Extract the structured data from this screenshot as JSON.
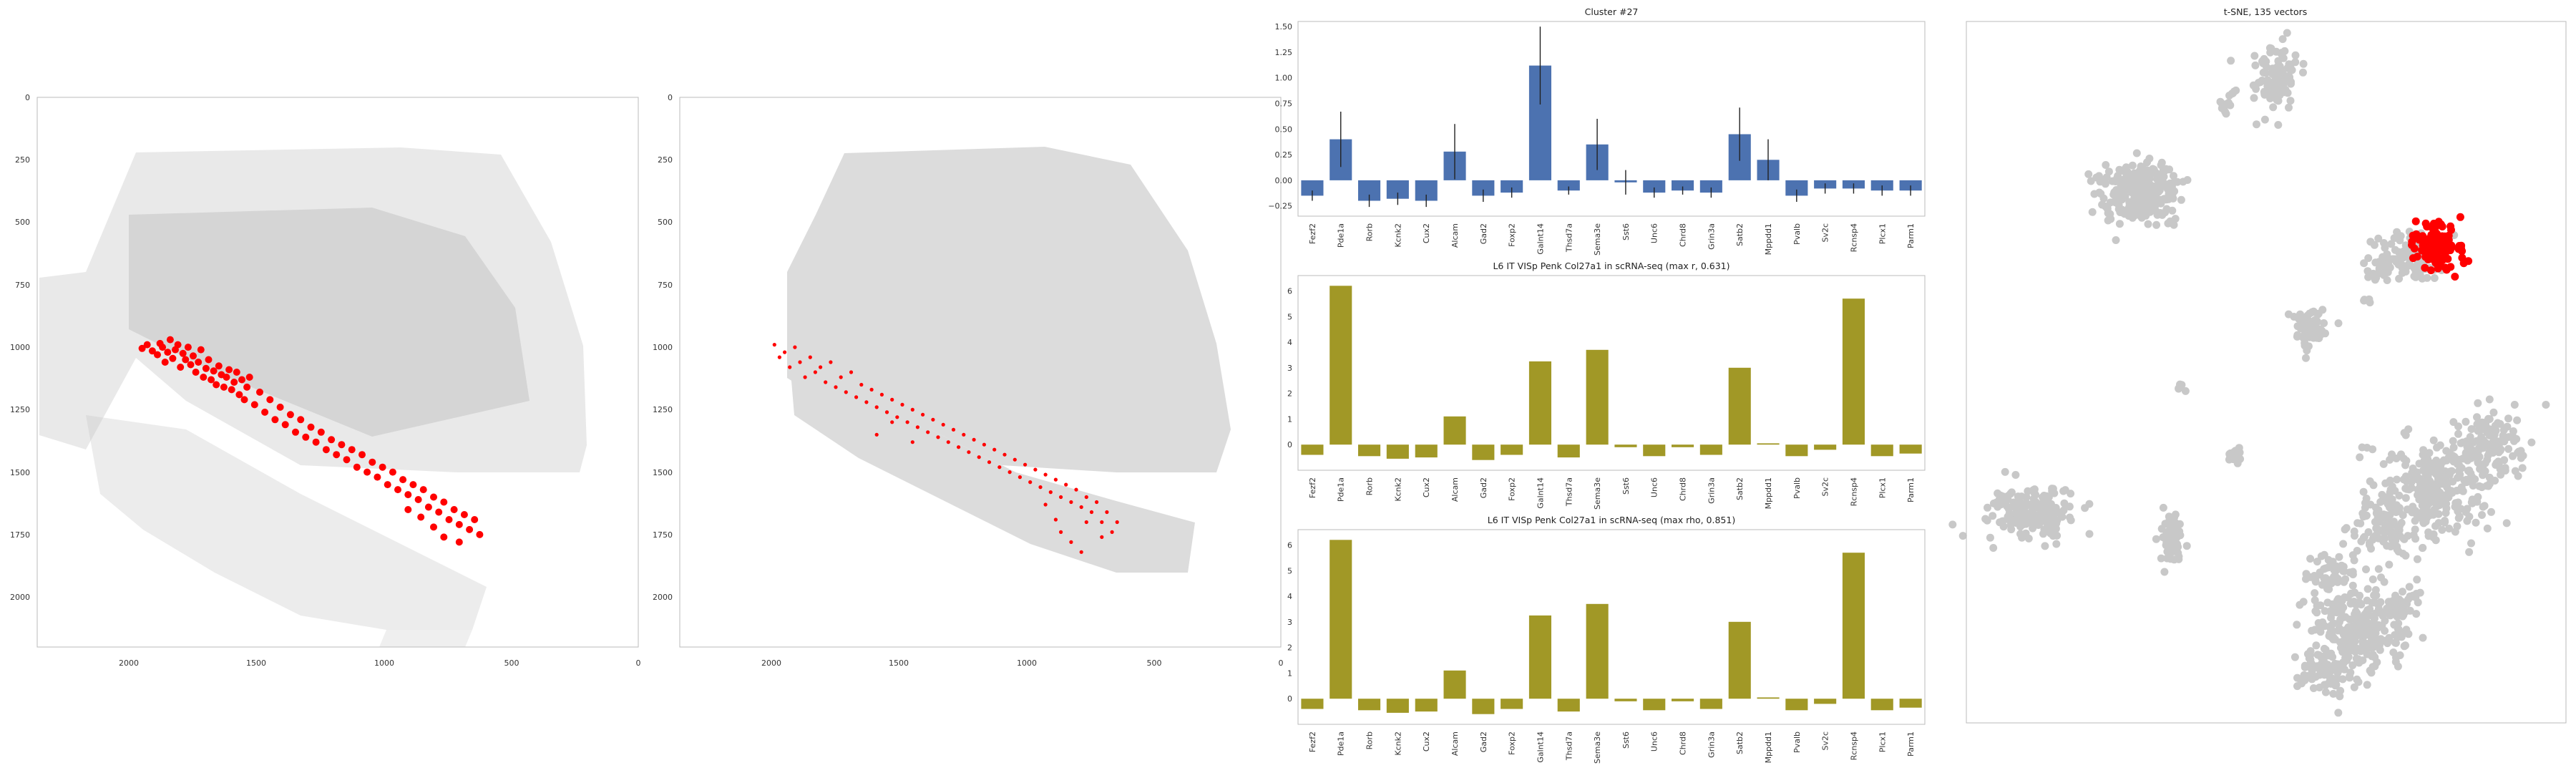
{
  "colors": {
    "highlight": "#ff0000",
    "bar_blue": "#4c72b0",
    "bar_olive": "#a19826",
    "background_cells": "#d4d4d4",
    "tsne_points": "#c8c8c8"
  },
  "chart_data": [
    {
      "id": "spatial_left",
      "type": "scatter",
      "title": "",
      "xlim": [
        2350,
        0
      ],
      "ylim": [
        2200,
        0
      ],
      "xticks": [
        "2000",
        "1500",
        "1000",
        "500",
        "0"
      ],
      "yticks": [
        "0",
        "250",
        "500",
        "750",
        "1000",
        "1250",
        "1500",
        "1750",
        "2000"
      ],
      "series": [
        {
          "points": [
            [
              1940,
              1005
            ],
            [
              1920,
              990
            ],
            [
              1900,
              1015
            ],
            [
              1880,
              1030
            ],
            [
              1870,
              985
            ],
            [
              1860,
              1000
            ],
            [
              1850,
              1060
            ],
            [
              1840,
              1020
            ],
            [
              1830,
              970
            ],
            [
              1820,
              1045
            ],
            [
              1810,
              1010
            ],
            [
              1800,
              990
            ],
            [
              1790,
              1080
            ],
            [
              1780,
              1025
            ],
            [
              1770,
              1050
            ],
            [
              1760,
              1000
            ],
            [
              1750,
              1070
            ],
            [
              1740,
              1035
            ],
            [
              1730,
              1100
            ],
            [
              1720,
              1060
            ],
            [
              1710,
              1010
            ],
            [
              1700,
              1120
            ],
            [
              1690,
              1085
            ],
            [
              1680,
              1050
            ],
            [
              1670,
              1130
            ],
            [
              1660,
              1095
            ],
            [
              1650,
              1150
            ],
            [
              1640,
              1075
            ],
            [
              1630,
              1110
            ],
            [
              1620,
              1160
            ],
            [
              1610,
              1120
            ],
            [
              1600,
              1090
            ],
            [
              1590,
              1170
            ],
            [
              1580,
              1140
            ],
            [
              1570,
              1100
            ],
            [
              1560,
              1190
            ],
            [
              1550,
              1130
            ],
            [
              1540,
              1210
            ],
            [
              1530,
              1160
            ],
            [
              1520,
              1120
            ],
            [
              1500,
              1230
            ],
            [
              1480,
              1180
            ],
            [
              1460,
              1260
            ],
            [
              1440,
              1210
            ],
            [
              1420,
              1290
            ],
            [
              1400,
              1240
            ],
            [
              1380,
              1310
            ],
            [
              1360,
              1270
            ],
            [
              1340,
              1340
            ],
            [
              1320,
              1290
            ],
            [
              1300,
              1360
            ],
            [
              1280,
              1320
            ],
            [
              1260,
              1380
            ],
            [
              1240,
              1340
            ],
            [
              1220,
              1410
            ],
            [
              1200,
              1370
            ],
            [
              1180,
              1430
            ],
            [
              1160,
              1390
            ],
            [
              1140,
              1450
            ],
            [
              1120,
              1410
            ],
            [
              1100,
              1480
            ],
            [
              1080,
              1430
            ],
            [
              1060,
              1500
            ],
            [
              1040,
              1460
            ],
            [
              1020,
              1520
            ],
            [
              1000,
              1480
            ],
            [
              980,
              1550
            ],
            [
              960,
              1500
            ],
            [
              940,
              1570
            ],
            [
              920,
              1530
            ],
            [
              900,
              1590
            ],
            [
              880,
              1550
            ],
            [
              860,
              1610
            ],
            [
              840,
              1570
            ],
            [
              820,
              1640
            ],
            [
              800,
              1600
            ],
            [
              780,
              1660
            ],
            [
              760,
              1620
            ],
            [
              740,
              1690
            ],
            [
              720,
              1650
            ],
            [
              700,
              1710
            ],
            [
              680,
              1670
            ],
            [
              660,
              1730
            ],
            [
              640,
              1690
            ],
            [
              620,
              1750
            ],
            [
              800,
              1720
            ],
            [
              850,
              1680
            ],
            [
              900,
              1650
            ],
            [
              760,
              1760
            ],
            [
              700,
              1780
            ]
          ]
        }
      ]
    },
    {
      "id": "spatial_right",
      "type": "scatter",
      "title": "",
      "xlim": [
        2350,
        0
      ],
      "ylim": [
        2200,
        0
      ],
      "xticks": [
        "2000",
        "1500",
        "1000",
        "500",
        "0"
      ],
      "yticks": [
        "0",
        "250",
        "500",
        "750",
        "1000",
        "1250",
        "1500",
        "1750",
        "2000"
      ],
      "series": [
        {
          "points": [
            [
              1980,
              990
            ],
            [
              1960,
              1040
            ],
            [
              1940,
              1020
            ],
            [
              1920,
              1080
            ],
            [
              1900,
              1000
            ],
            [
              1880,
              1060
            ],
            [
              1860,
              1120
            ],
            [
              1840,
              1040
            ],
            [
              1820,
              1100
            ],
            [
              1800,
              1080
            ],
            [
              1780,
              1140
            ],
            [
              1760,
              1060
            ],
            [
              1740,
              1160
            ],
            [
              1720,
              1120
            ],
            [
              1700,
              1180
            ],
            [
              1680,
              1100
            ],
            [
              1660,
              1200
            ],
            [
              1640,
              1150
            ],
            [
              1620,
              1220
            ],
            [
              1600,
              1170
            ],
            [
              1580,
              1240
            ],
            [
              1560,
              1190
            ],
            [
              1540,
              1260
            ],
            [
              1520,
              1210
            ],
            [
              1500,
              1280
            ],
            [
              1480,
              1230
            ],
            [
              1460,
              1300
            ],
            [
              1440,
              1250
            ],
            [
              1420,
              1320
            ],
            [
              1400,
              1270
            ],
            [
              1380,
              1340
            ],
            [
              1360,
              1290
            ],
            [
              1340,
              1360
            ],
            [
              1320,
              1310
            ],
            [
              1300,
              1380
            ],
            [
              1280,
              1330
            ],
            [
              1260,
              1400
            ],
            [
              1240,
              1350
            ],
            [
              1220,
              1420
            ],
            [
              1200,
              1370
            ],
            [
              1180,
              1440
            ],
            [
              1160,
              1390
            ],
            [
              1140,
              1460
            ],
            [
              1120,
              1410
            ],
            [
              1100,
              1480
            ],
            [
              1080,
              1430
            ],
            [
              1060,
              1500
            ],
            [
              1040,
              1450
            ],
            [
              1020,
              1520
            ],
            [
              1000,
              1470
            ],
            [
              980,
              1540
            ],
            [
              960,
              1490
            ],
            [
              940,
              1560
            ],
            [
              920,
              1510
            ],
            [
              900,
              1580
            ],
            [
              880,
              1530
            ],
            [
              860,
              1600
            ],
            [
              840,
              1550
            ],
            [
              820,
              1620
            ],
            [
              800,
              1570
            ],
            [
              780,
              1640
            ],
            [
              760,
              1600
            ],
            [
              740,
              1660
            ],
            [
              720,
              1620
            ],
            [
              700,
              1700
            ],
            [
              680,
              1660
            ],
            [
              660,
              1740
            ],
            [
              640,
              1700
            ],
            [
              920,
              1630
            ],
            [
              880,
              1690
            ],
            [
              860,
              1740
            ],
            [
              820,
              1780
            ],
            [
              780,
              1820
            ],
            [
              760,
              1700
            ],
            [
              700,
              1760
            ],
            [
              1580,
              1350
            ],
            [
              1520,
              1300
            ],
            [
              1440,
              1380
            ]
          ]
        }
      ]
    },
    {
      "id": "cluster_bar",
      "type": "bar",
      "title": "Cluster #27",
      "categories": [
        "Fezf2",
        "Pde1a",
        "Rorb",
        "Kcnk2",
        "Cux2",
        "Alcam",
        "Gad2",
        "Foxp2",
        "Galnt14",
        "Thsd7a",
        "Sema3e",
        "Sst6",
        "Unc6",
        "Chrd8",
        "Grin3a",
        "Satb2",
        "Mppdd1",
        "Pvalb",
        "Sv2c",
        "Rcnsp4",
        "Plcx1",
        "Parm1"
      ],
      "values": [
        -0.15,
        0.4,
        -0.2,
        -0.18,
        -0.2,
        0.28,
        -0.15,
        -0.12,
        1.12,
        -0.1,
        0.35,
        -0.02,
        -0.12,
        -0.1,
        -0.12,
        0.45,
        0.2,
        -0.15,
        -0.08,
        -0.08,
        -0.1,
        -0.1
      ],
      "errors": [
        0.05,
        0.27,
        0.06,
        0.06,
        0.06,
        0.27,
        0.06,
        0.05,
        0.38,
        0.04,
        0.25,
        0.12,
        0.05,
        0.04,
        0.05,
        0.26,
        0.2,
        0.06,
        0.05,
        0.05,
        0.05,
        0.05
      ],
      "ylim": [
        -0.35,
        1.55
      ],
      "yticks": [
        -0.25,
        0.0,
        0.25,
        0.5,
        0.75,
        1.0,
        1.25,
        1.5
      ],
      "ytick_labels": [
        "−0.25",
        "0.00",
        "0.25",
        "0.50",
        "0.75",
        "1.00",
        "1.25",
        "1.50"
      ]
    },
    {
      "id": "scrna_max_r",
      "type": "bar",
      "title": "L6 IT VISp Penk Col27a1 in scRNA-seq (max r, 0.631)",
      "categories": [
        "Fezf2",
        "Pde1a",
        "Rorb",
        "Kcnk2",
        "Cux2",
        "Alcam",
        "Gad2",
        "Foxp2",
        "Galnt14",
        "Thsd7a",
        "Sema3e",
        "Sst6",
        "Unc6",
        "Chrd8",
        "Grin3a",
        "Satb2",
        "Mppdd1",
        "Pvalb",
        "Sv2c",
        "Rcnsp4",
        "Plcx1",
        "Parm1"
      ],
      "values": [
        -0.4,
        6.2,
        -0.45,
        -0.55,
        -0.5,
        1.1,
        -0.6,
        -0.4,
        3.25,
        -0.5,
        3.7,
        -0.1,
        -0.45,
        -0.1,
        -0.4,
        3.0,
        0.05,
        -0.45,
        -0.2,
        5.7,
        -0.45,
        -0.35
      ],
      "ylim": [
        -1.0,
        6.6
      ],
      "yticks": [
        0,
        1,
        2,
        3,
        4,
        5,
        6
      ],
      "ytick_labels": [
        "0",
        "1",
        "2",
        "3",
        "4",
        "5",
        "6"
      ]
    },
    {
      "id": "scrna_max_rho",
      "type": "bar",
      "title": "L6 IT VISp Penk Col27a1 in scRNA-seq (max rho, 0.851)",
      "categories": [
        "Fezf2",
        "Pde1a",
        "Rorb",
        "Kcnk2",
        "Cux2",
        "Alcam",
        "Gad2",
        "Foxp2",
        "Galnt14",
        "Thsd7a",
        "Sema3e",
        "Sst6",
        "Unc6",
        "Chrd8",
        "Grin3a",
        "Satb2",
        "Mppdd1",
        "Pvalb",
        "Sv2c",
        "Rcnsp4",
        "Plcx1",
        "Parm1"
      ],
      "values": [
        -0.4,
        6.2,
        -0.45,
        -0.55,
        -0.5,
        1.1,
        -0.6,
        -0.4,
        3.25,
        -0.5,
        3.7,
        -0.1,
        -0.45,
        -0.1,
        -0.4,
        3.0,
        0.05,
        -0.45,
        -0.2,
        5.7,
        -0.45,
        -0.35
      ],
      "ylim": [
        -1.0,
        6.6
      ],
      "yticks": [
        0,
        1,
        2,
        3,
        4,
        5,
        6
      ],
      "ytick_labels": [
        "0",
        "1",
        "2",
        "3",
        "4",
        "5",
        "6"
      ]
    },
    {
      "id": "tsne",
      "type": "scatter",
      "title": "t-SNE, 135 vectors",
      "grid": false
    }
  ]
}
